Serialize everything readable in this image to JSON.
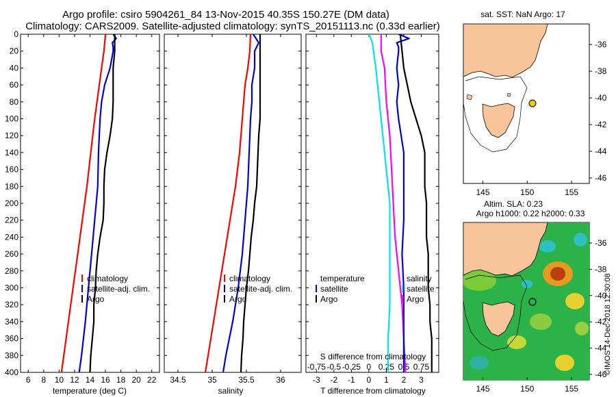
{
  "header": {
    "line1": "Argo profile: csiro 5904261_84 13-Nov-2015 40.35S 150.27E (DM data)",
    "line2": "Climatology: CARS2009. Satellite-adjusted climatology: synTS_20151113.nc (0.33d earlier)"
  },
  "colors": {
    "climatology": "#ff0000",
    "satellite": "#0000dd",
    "argo": "#000000",
    "magenta": "#ff00ff",
    "cyan": "#00e5e5",
    "land": "#f8c49a",
    "marker": "#e8d000"
  },
  "chart_data": [
    {
      "type": "line",
      "name": "temperature-profile",
      "xlabel": "temperature (deg C)",
      "ylabel": "",
      "xlim": [
        5,
        23
      ],
      "ylim": [
        400,
        0
      ],
      "x_ticks": [
        "6",
        "8",
        "10",
        "12",
        "14",
        "16",
        "18",
        "20",
        "22"
      ],
      "x_tick_values": [
        6,
        8,
        10,
        12,
        14,
        16,
        18,
        20,
        22
      ],
      "y_ticks": [
        "0",
        "20",
        "40",
        "60",
        "80",
        "100",
        "120",
        "140",
        "160",
        "180",
        "200",
        "220",
        "240",
        "260",
        "280",
        "300",
        "320",
        "340",
        "360",
        "380",
        "400"
      ],
      "y_tick_values": [
        0,
        20,
        40,
        60,
        80,
        100,
        120,
        140,
        160,
        180,
        200,
        220,
        240,
        260,
        280,
        300,
        320,
        340,
        360,
        380,
        400
      ],
      "legend": [
        "climatology",
        "satellite-adj. clim.",
        "Argo"
      ],
      "series": [
        {
          "name": "climatology",
          "color": "#ff0000",
          "depth": [
            0,
            20,
            40,
            60,
            80,
            100,
            140,
            180,
            220,
            260,
            300,
            340,
            380,
            400
          ],
          "values": [
            16.0,
            15.8,
            15.5,
            15.2,
            14.9,
            14.6,
            14.1,
            13.6,
            13.0,
            12.4,
            11.8,
            11.2,
            10.6,
            10.3
          ]
        },
        {
          "name": "satellite-adj. clim.",
          "color": "#0000dd",
          "depth": [
            0,
            5,
            10,
            15,
            20,
            40,
            60,
            80,
            100,
            140,
            180,
            220,
            260,
            300,
            340,
            380,
            400
          ],
          "values": [
            17.0,
            17.4,
            16.9,
            17.0,
            17.0,
            16.6,
            15.9,
            15.5,
            15.3,
            15.1,
            15.0,
            14.6,
            14.2,
            13.8,
            13.4,
            12.9,
            12.6
          ]
        },
        {
          "name": "Argo",
          "color": "#000000",
          "depth": [
            0,
            20,
            40,
            60,
            80,
            100,
            120,
            140,
            160,
            180,
            200,
            220,
            240,
            260,
            280,
            300,
            320,
            340,
            360,
            380,
            400
          ],
          "values": [
            17.2,
            17.2,
            17.0,
            17.0,
            17.0,
            16.9,
            16.6,
            16.2,
            15.9,
            15.8,
            15.8,
            15.7,
            15.3,
            15.0,
            14.8,
            14.7,
            14.5,
            14.5,
            14.3,
            14.1,
            14.0
          ]
        }
      ]
    },
    {
      "type": "line",
      "name": "salinity-profile",
      "xlabel": "salinity",
      "xlim": [
        34.3,
        36.3
      ],
      "ylim": [
        400,
        0
      ],
      "x_ticks": [
        "34.5",
        "35",
        "35.5",
        "36"
      ],
      "x_tick_values": [
        34.5,
        35.0,
        35.5,
        36.0
      ],
      "legend": [
        "climatology",
        "satellite-adj. clim.",
        "Argo"
      ],
      "series": [
        {
          "name": "climatology",
          "color": "#ff0000",
          "depth": [
            0,
            20,
            40,
            60,
            80,
            100,
            140,
            180,
            220,
            260,
            300,
            340,
            380,
            400
          ],
          "values": [
            35.56,
            35.55,
            35.52,
            35.48,
            35.46,
            35.44,
            35.4,
            35.34,
            35.26,
            35.18,
            35.1,
            35.02,
            34.94,
            34.9
          ]
        },
        {
          "name": "satellite-adj. clim.",
          "color": "#0000dd",
          "depth": [
            0,
            10,
            20,
            40,
            60,
            80,
            100,
            140,
            180,
            220,
            260,
            300,
            340,
            380,
            400
          ],
          "values": [
            35.6,
            35.68,
            35.62,
            35.62,
            35.58,
            35.58,
            35.56,
            35.54,
            35.52,
            35.48,
            35.44,
            35.38,
            35.3,
            35.2,
            35.16
          ]
        },
        {
          "name": "Argo",
          "color": "#000000",
          "depth": [
            0,
            20,
            40,
            60,
            80,
            100,
            120,
            140,
            160,
            180,
            200,
            220,
            240,
            260,
            280,
            300,
            320,
            340,
            360,
            380,
            400
          ],
          "values": [
            35.7,
            35.7,
            35.7,
            35.7,
            35.7,
            35.7,
            35.68,
            35.67,
            35.66,
            35.65,
            35.62,
            35.6,
            35.57,
            35.55,
            35.53,
            35.5,
            35.48,
            35.46,
            35.45,
            35.43,
            35.42
          ]
        }
      ]
    },
    {
      "type": "line",
      "name": "difference-profile",
      "xlabel": "T difference from climatology",
      "top_axis_label": "S difference from climatology",
      "xlim": [
        -3.6,
        4.0
      ],
      "ylim": [
        400,
        0
      ],
      "x_ticks": [
        "-3",
        "-2",
        "-1",
        "0",
        "1",
        "2",
        "3"
      ],
      "x_tick_values": [
        -3,
        -2,
        -1,
        0,
        1,
        2,
        3
      ],
      "s_ticks": [
        "-0.75",
        "-0.5",
        "-0.25",
        "0",
        "0.25",
        "0.5",
        "0.75"
      ],
      "s_tick_values": [
        -3,
        -2,
        -1,
        0,
        1,
        2,
        3
      ],
      "legend_left": [
        "temperature",
        "satellite",
        "Argo"
      ],
      "legend_right": [
        "salinity",
        "satellite",
        "Argo"
      ],
      "series": [
        {
          "name": "salinity satellite",
          "color": "#00e5e5",
          "depth": [
            0,
            10,
            40,
            80,
            120,
            160,
            200,
            240,
            280,
            320,
            360,
            400
          ],
          "values": [
            0.0,
            0.2,
            0.4,
            0.6,
            0.8,
            1.0,
            1.2,
            1.2,
            1.2,
            1.2,
            1.1,
            1.1
          ]
        },
        {
          "name": "salinity Argo",
          "color": "#ff00ff",
          "depth": [
            0,
            20,
            40,
            80,
            120,
            160,
            200,
            240,
            280,
            320,
            360,
            400
          ],
          "values": [
            0.7,
            0.7,
            0.9,
            1.0,
            1.2,
            1.3,
            1.4,
            1.5,
            1.7,
            1.9,
            2.0,
            2.1
          ]
        },
        {
          "name": "temperature satellite",
          "color": "#0000dd",
          "depth": [
            0,
            5,
            10,
            15,
            20,
            40,
            60,
            80,
            100,
            140,
            180,
            220,
            260,
            300,
            340,
            380,
            400
          ],
          "values": [
            1.7,
            2.3,
            1.6,
            1.7,
            1.7,
            1.6,
            1.7,
            1.6,
            1.7,
            2.0,
            2.0,
            2.0,
            1.9,
            2.0,
            2.0,
            2.0,
            2.0
          ]
        },
        {
          "name": "temperature Argo",
          "color": "#000000",
          "depth": [
            0,
            20,
            40,
            60,
            80,
            100,
            120,
            140,
            160,
            180,
            200,
            220,
            240,
            260,
            280,
            300,
            320,
            340,
            360,
            380,
            400
          ],
          "values": [
            1.8,
            1.9,
            2.0,
            2.2,
            2.4,
            2.7,
            3.0,
            3.2,
            3.2,
            3.2,
            3.3,
            3.3,
            3.3,
            3.4,
            3.4,
            3.4,
            3.5,
            3.5,
            3.6,
            3.6,
            3.6
          ]
        }
      ]
    }
  ],
  "maps": {
    "sst": {
      "title": "sat. SST: NaN Argo: 17",
      "lon_ticks": [
        "145",
        "150",
        "155"
      ],
      "lat_ticks": [
        "-36",
        "-38",
        "-40",
        "-42",
        "-44",
        "-46"
      ]
    },
    "sla": {
      "title1": "Altim. SLA: 0.23",
      "title2": "Argo h1000: 0.22 h2000: 0.33",
      "lon_ticks": [
        "145",
        "150",
        "155"
      ],
      "lat_ticks": [
        "-36",
        "-38",
        "-40",
        "-42",
        "-44",
        "-46"
      ]
    }
  },
  "credit": "©IMOS 14-Dec-2018 12:30:08"
}
